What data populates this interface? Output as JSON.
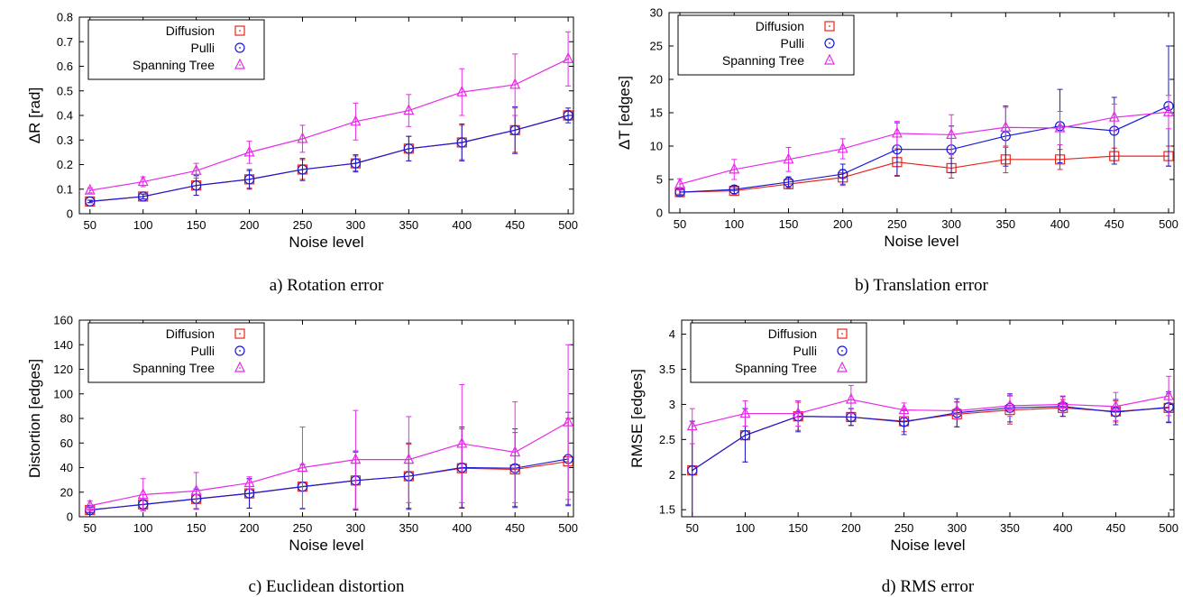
{
  "colors": {
    "Diffusion": "#e8261c",
    "Pulli": "#1a1ad8",
    "Spanning Tree": "#e82ae8"
  },
  "chart_data": [
    {
      "type": "line",
      "caption": "a) Rotation error",
      "xlabel": "Noise level",
      "ylabel": "ΔR [rad]",
      "xlim": [
        40,
        505
      ],
      "ylim": [
        0,
        0.8
      ],
      "xticks": [
        50,
        100,
        150,
        200,
        250,
        300,
        350,
        400,
        450,
        500
      ],
      "yticks": [
        0,
        0.1,
        0.2,
        0.3,
        0.4,
        0.5,
        0.6,
        0.7,
        0.8
      ],
      "ytick_labels": [
        "0",
        "0.1",
        "0.2",
        "0.3",
        "0.4",
        "0.5",
        "0.6",
        "0.7",
        "0.8"
      ],
      "legend": "top-left",
      "x": [
        50,
        100,
        150,
        200,
        250,
        300,
        350,
        400,
        450,
        500
      ],
      "series": [
        {
          "name": "Diffusion",
          "marker": "square",
          "values": [
            0.05,
            0.07,
            0.115,
            0.14,
            0.18,
            0.205,
            0.265,
            0.29,
            0.34,
            0.4
          ],
          "err": [
            0.005,
            0.01,
            0.04,
            0.035,
            0.04,
            0.03,
            0.05,
            0.07,
            0.09,
            0.02
          ]
        },
        {
          "name": "Pulli",
          "marker": "circle",
          "values": [
            0.05,
            0.07,
            0.115,
            0.14,
            0.18,
            0.205,
            0.265,
            0.29,
            0.34,
            0.4
          ],
          "err": [
            0.005,
            0.01,
            0.04,
            0.04,
            0.045,
            0.035,
            0.05,
            0.075,
            0.095,
            0.03
          ]
        },
        {
          "name": "Spanning Tree",
          "marker": "triangle",
          "values": [
            0.095,
            0.13,
            0.175,
            0.25,
            0.305,
            0.375,
            0.42,
            0.495,
            0.525,
            0.63
          ],
          "err": [
            0.01,
            0.02,
            0.03,
            0.045,
            0.055,
            0.075,
            0.065,
            0.095,
            0.125,
            0.11
          ]
        }
      ]
    },
    {
      "type": "line",
      "caption": "b) Translation error",
      "xlabel": "Noise level",
      "ylabel": "ΔT [edges]",
      "xlim": [
        40,
        505
      ],
      "ylim": [
        0,
        30
      ],
      "xticks": [
        50,
        100,
        150,
        200,
        250,
        300,
        350,
        400,
        450,
        500
      ],
      "yticks": [
        0,
        5,
        10,
        15,
        20,
        25,
        30
      ],
      "ytick_labels": [
        "0",
        "5",
        "10",
        "15",
        "20",
        "25",
        "30"
      ],
      "legend": "top-left",
      "x": [
        50,
        100,
        150,
        200,
        250,
        300,
        350,
        400,
        450,
        500
      ],
      "series": [
        {
          "name": "Diffusion",
          "marker": "square",
          "values": [
            3.1,
            3.3,
            4.3,
            5.3,
            7.6,
            6.7,
            8.0,
            8.0,
            8.5,
            8.5
          ],
          "err": [
            0.3,
            0.5,
            0.7,
            1.2,
            2.0,
            1.5,
            2.0,
            1.5,
            1.2,
            1.5
          ]
        },
        {
          "name": "Pulli",
          "marker": "circle",
          "values": [
            3.1,
            3.5,
            4.6,
            5.8,
            9.5,
            9.5,
            11.5,
            13.0,
            12.3,
            16.0
          ],
          "err": [
            0.5,
            0.6,
            0.8,
            1.5,
            4.0,
            3.5,
            4.5,
            5.5,
            5.0,
            9.0
          ]
        },
        {
          "name": "Spanning Tree",
          "marker": "triangle",
          "values": [
            4.3,
            6.5,
            8.0,
            9.6,
            11.9,
            11.7,
            12.8,
            12.7,
            14.3,
            15.1
          ],
          "err": [
            0.8,
            1.5,
            1.8,
            1.5,
            1.8,
            3.0,
            3.0,
            2.5,
            2.0,
            2.5
          ]
        }
      ]
    },
    {
      "type": "line",
      "caption": "c) Euclidean distortion",
      "xlabel": "Noise level",
      "ylabel": "Distortion [edges]",
      "xlim": [
        40,
        505
      ],
      "ylim": [
        0,
        160
      ],
      "xticks": [
        50,
        100,
        150,
        200,
        250,
        300,
        350,
        400,
        450,
        500
      ],
      "yticks": [
        0,
        20,
        40,
        60,
        80,
        100,
        120,
        140,
        160
      ],
      "ytick_labels": [
        "0",
        "20",
        "40",
        "60",
        "80",
        "100",
        "120",
        "140",
        "160"
      ],
      "legend": "top-left",
      "x": [
        50,
        100,
        150,
        200,
        250,
        300,
        350,
        400,
        450,
        500
      ],
      "series": [
        {
          "name": "Diffusion",
          "marker": "square",
          "values": [
            5.5,
            10,
            14.5,
            19,
            24.5,
            29.5,
            33,
            39.5,
            38.5,
            45
          ],
          "err": [
            2,
            5,
            8,
            12,
            18,
            23,
            26,
            32,
            30,
            35
          ]
        },
        {
          "name": "Pulli",
          "marker": "circle",
          "values": [
            5.5,
            10,
            14.5,
            19,
            24.5,
            29.5,
            33,
            40,
            39.5,
            47
          ],
          "err": [
            2,
            5,
            8,
            12,
            18,
            24,
            27,
            33,
            32,
            38
          ]
        },
        {
          "name": "Spanning Tree",
          "marker": "triangle",
          "values": [
            9,
            18,
            21,
            27.5,
            40,
            46.5,
            46.5,
            59.5,
            52.5,
            77
          ],
          "err": [
            4,
            13,
            15,
            5,
            33,
            40,
            35,
            48,
            41,
            63
          ]
        }
      ]
    },
    {
      "type": "line",
      "caption": "d) RMS error",
      "xlabel": "Noise level",
      "ylabel": "RMSE [edges]",
      "xlim": [
        40,
        505
      ],
      "ylim": [
        1.4,
        4.2
      ],
      "xticks": [
        50,
        100,
        150,
        200,
        250,
        300,
        350,
        400,
        450,
        500
      ],
      "yticks": [
        1.5,
        2,
        2.5,
        3,
        3.5,
        4
      ],
      "ytick_labels": [
        "1.5",
        "2",
        "2.5",
        "3",
        "3.5",
        "4"
      ],
      "legend": "top-left",
      "x": [
        50,
        100,
        150,
        200,
        250,
        300,
        350,
        400,
        450,
        500
      ],
      "series": [
        {
          "name": "Diffusion",
          "marker": "square",
          "values": [
            2.06,
            2.56,
            2.83,
            2.82,
            2.76,
            2.86,
            2.92,
            2.95,
            2.9,
            2.95
          ],
          "err": [
            0.7,
            0.38,
            0.2,
            0.12,
            0.15,
            0.18,
            0.2,
            0.12,
            0.15,
            0.2
          ]
        },
        {
          "name": "Pulli",
          "marker": "circle",
          "values": [
            2.06,
            2.56,
            2.83,
            2.82,
            2.75,
            2.88,
            2.95,
            2.97,
            2.89,
            2.96
          ],
          "err": [
            0.7,
            0.38,
            0.22,
            0.12,
            0.18,
            0.2,
            0.2,
            0.14,
            0.18,
            0.22
          ]
        },
        {
          "name": "Spanning Tree",
          "marker": "triangle",
          "values": [
            2.69,
            2.87,
            2.87,
            3.07,
            2.92,
            2.91,
            2.98,
            3.0,
            2.97,
            3.12
          ],
          "err": [
            0.25,
            0.18,
            0.18,
            0.2,
            0.1,
            0.12,
            0.15,
            0.12,
            0.2,
            0.28
          ]
        }
      ]
    }
  ]
}
